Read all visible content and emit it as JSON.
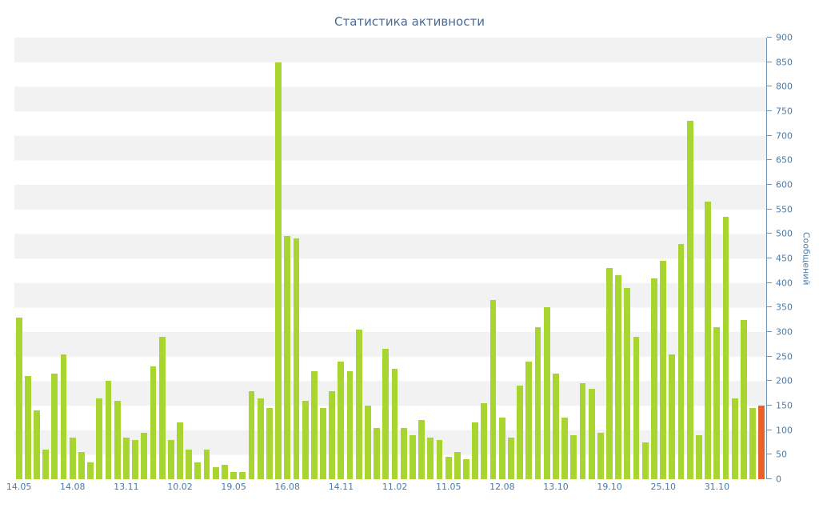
{
  "chart_data": {
    "type": "bar",
    "title": "Статистика активности",
    "ylabel": "Сообщений",
    "xlabel": "",
    "ylim": [
      0,
      900
    ],
    "y_tick_step": 50,
    "y_ticks": [
      0,
      50,
      100,
      150,
      200,
      250,
      300,
      350,
      400,
      450,
      500,
      550,
      600,
      650,
      700,
      750,
      800,
      850,
      900
    ],
    "x_tick_labels": [
      "14.05",
      "14.08",
      "13.11",
      "10.02",
      "19.05",
      "16.08",
      "14.11",
      "11.02",
      "11.05",
      "12.08",
      "13.10",
      "19.10",
      "25.10",
      "31.10"
    ],
    "values": [
      330,
      210,
      140,
      60,
      215,
      255,
      85,
      55,
      35,
      165,
      200,
      160,
      85,
      80,
      95,
      230,
      290,
      80,
      115,
      60,
      35,
      60,
      25,
      30,
      15,
      15,
      180,
      165,
      145,
      850,
      495,
      490,
      160,
      220,
      145,
      180,
      240,
      220,
      305,
      150,
      105,
      265,
      225,
      105,
      90,
      120,
      85,
      80,
      45,
      55,
      40,
      115,
      155,
      365,
      125,
      85,
      190,
      240,
      310,
      350,
      215,
      125,
      90,
      195,
      185,
      95,
      430,
      415,
      390,
      290,
      75,
      410,
      445,
      255,
      480,
      730,
      90,
      565,
      310,
      535,
      165,
      325,
      145,
      150
    ],
    "legend": null,
    "grid": "striped-bands",
    "colors": {
      "bar": "#a8d52f",
      "last_bar": "#e8622b",
      "axis": "#7296b5",
      "text": "#4a7ba8",
      "title_text": "#476a96",
      "band_gray": "#f2f2f2",
      "band_white": "#ffffff"
    }
  }
}
